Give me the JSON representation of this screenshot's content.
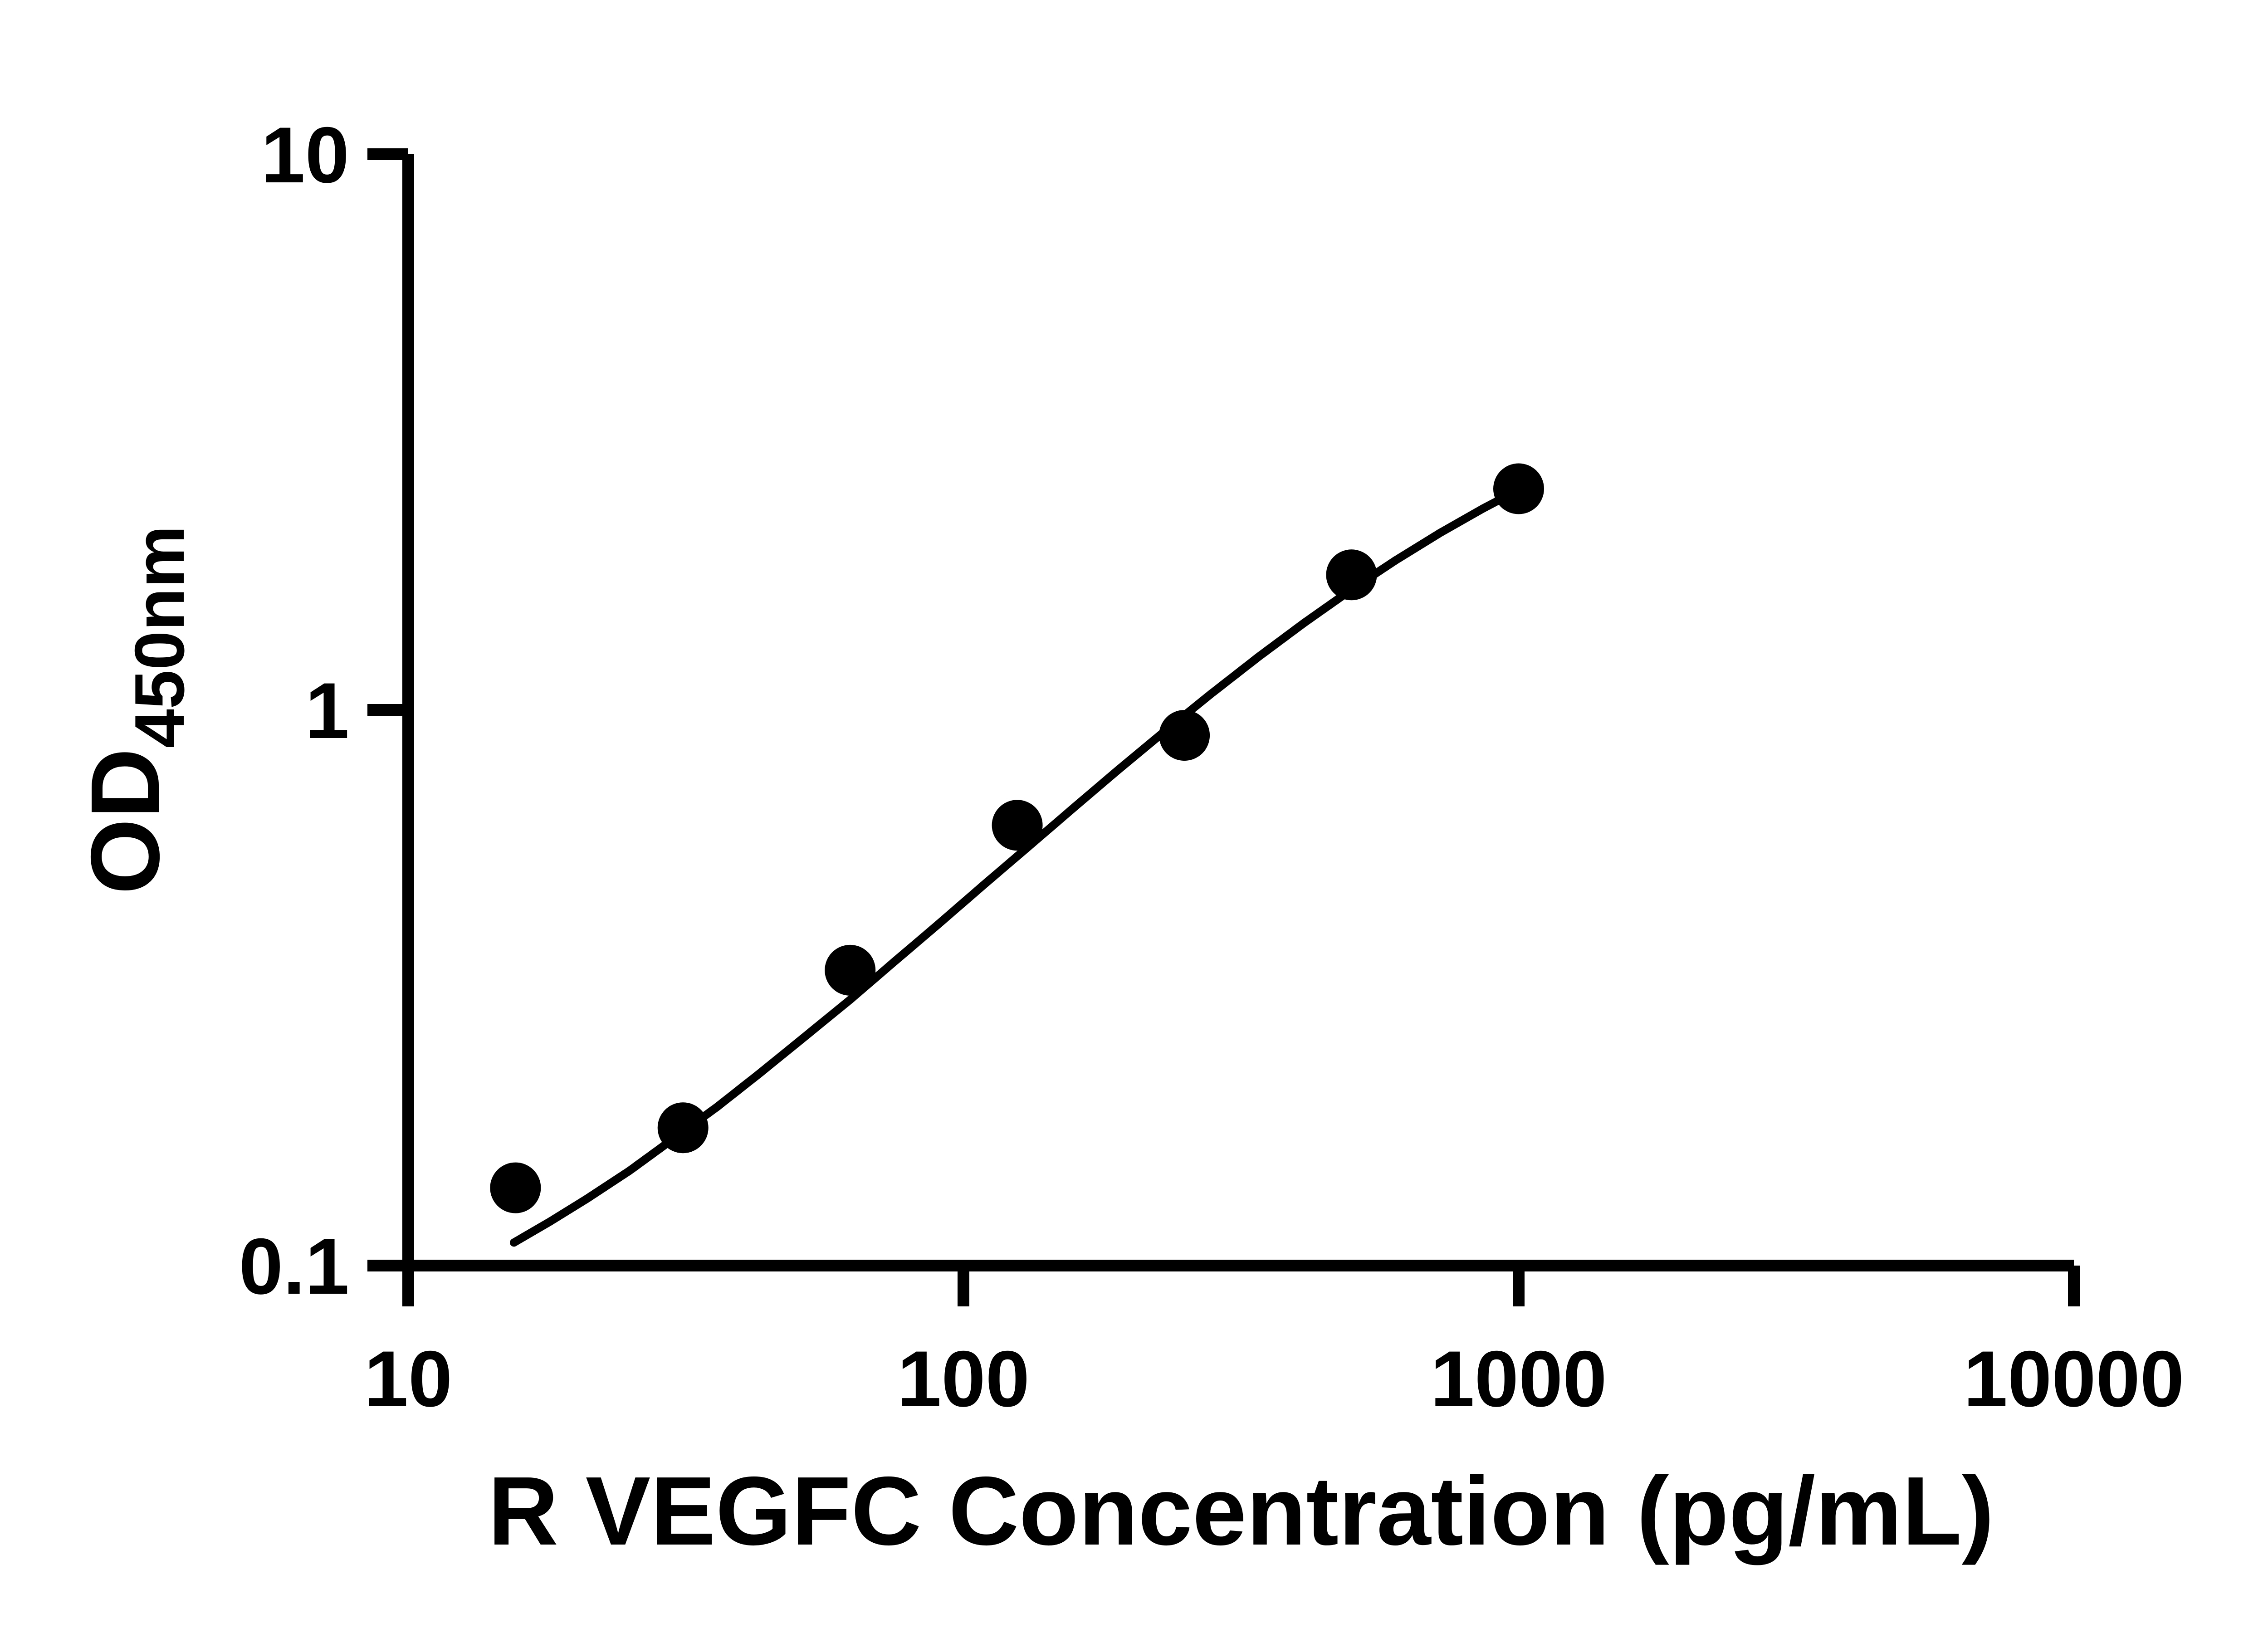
{
  "figure": {
    "background": "#ffffff",
    "foreground": "#000000"
  },
  "chart_data": {
    "type": "scatter",
    "title": "",
    "xlabel": "R VEGFC Concentration (pg/mL)",
    "ylabel": "OD450nm",
    "ylabel_main": "OD",
    "ylabel_sub": "450nm",
    "x_scale": "log",
    "y_scale": "log",
    "xlim": [
      10,
      10000
    ],
    "ylim": [
      0.1,
      10
    ],
    "grid": false,
    "legend": "none",
    "axis_color": "#000000",
    "x_ticks": [
      {
        "value": 10,
        "label": "10"
      },
      {
        "value": 100,
        "label": "100"
      },
      {
        "value": 1000,
        "label": "1000"
      },
      {
        "value": 10000,
        "label": "10000"
      }
    ],
    "y_ticks": [
      {
        "value": 0.1,
        "label": "0.1"
      },
      {
        "value": 1,
        "label": "1"
      },
      {
        "value": 10,
        "label": "10"
      }
    ],
    "series": [
      {
        "name": "standard-points",
        "type": "scatter",
        "marker": "filled-circle",
        "color": "#000000",
        "x": [
          15.6,
          31.25,
          62.5,
          125,
          250,
          500,
          1000
        ],
        "y": [
          0.138,
          0.177,
          0.34,
          0.62,
          0.9,
          1.75,
          2.5
        ]
      },
      {
        "name": "fit-curve",
        "type": "line",
        "color": "#000000",
        "x": [
          15.5,
          18,
          21,
          25,
          30,
          36,
          43,
          52,
          62.5,
          75,
          90,
          110,
          130,
          160,
          190,
          230,
          280,
          340,
          410,
          500,
          600,
          720,
          860,
          1000
        ],
        "y": [
          0.11,
          0.12,
          0.132,
          0.148,
          0.169,
          0.193,
          0.222,
          0.259,
          0.301,
          0.352,
          0.411,
          0.489,
          0.564,
          0.674,
          0.78,
          0.914,
          1.071,
          1.246,
          1.432,
          1.647,
          1.858,
          2.079,
          2.3,
          2.49
        ]
      }
    ]
  }
}
